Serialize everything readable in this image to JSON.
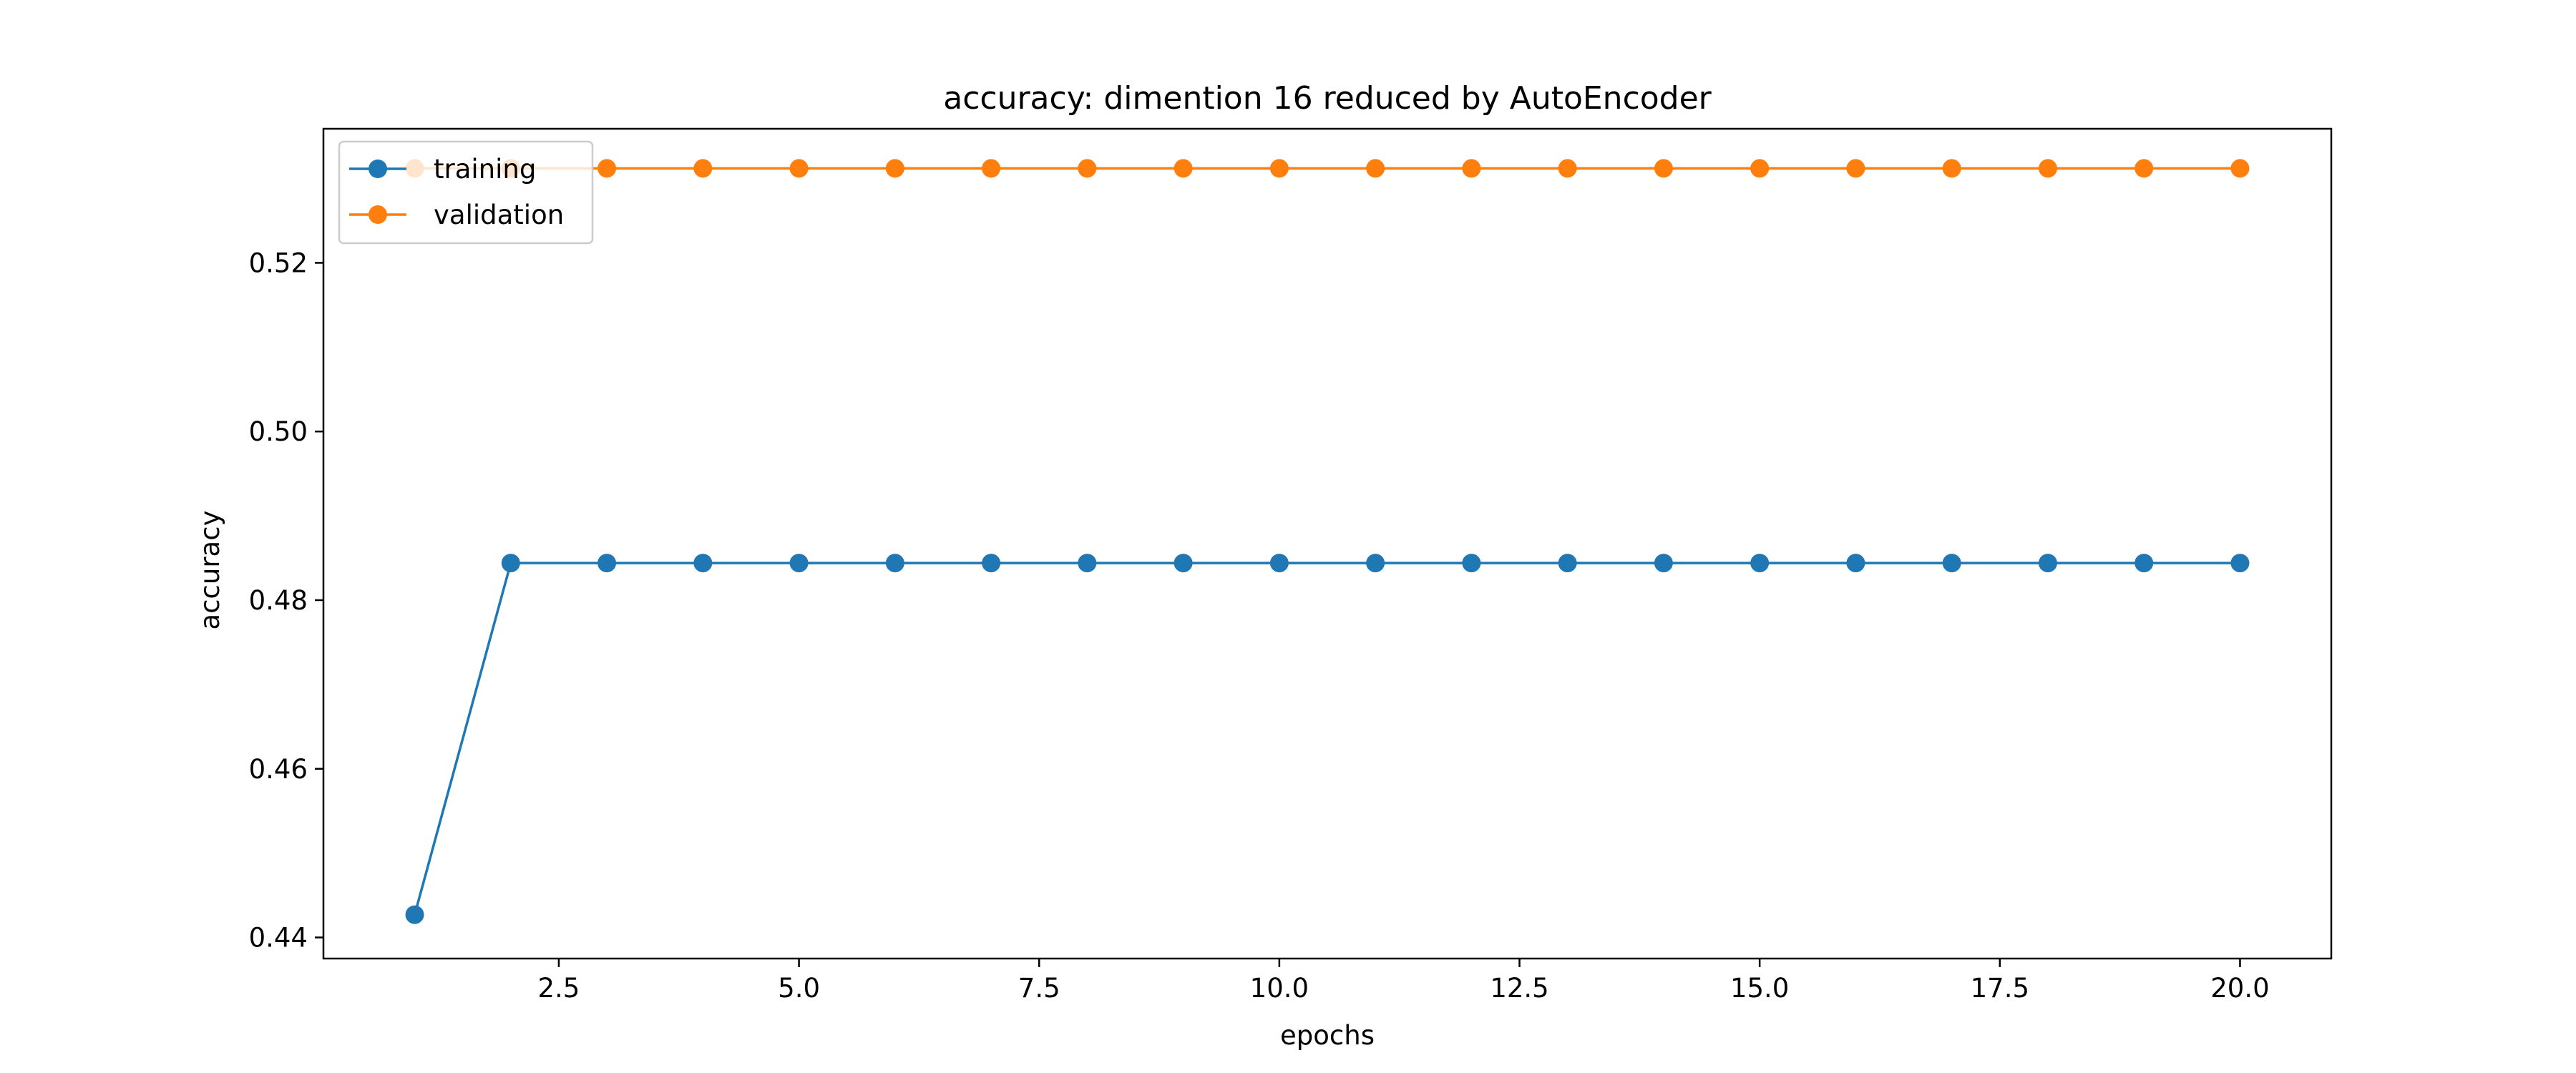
{
  "chart_data": {
    "type": "line",
    "title": "accuracy: dimention 16 reduced by AutoEncoder",
    "xlabel": "epochs",
    "ylabel": "accuracy",
    "xlim": [
      0.05,
      20.95
    ],
    "ylim": [
      0.4375,
      0.5359
    ],
    "xticks": [
      2.5,
      5.0,
      7.5,
      10.0,
      12.5,
      15.0,
      17.5,
      20.0
    ],
    "xtick_labels": [
      "2.5",
      "5.0",
      "7.5",
      "10.0",
      "12.5",
      "15.0",
      "17.5",
      "20.0"
    ],
    "yticks": [
      0.44,
      0.46,
      0.48,
      0.5,
      0.52
    ],
    "ytick_labels": [
      "0.44",
      "0.46",
      "0.48",
      "0.50",
      "0.52"
    ],
    "grid": false,
    "legend_position": "top-left",
    "x": [
      1,
      2,
      3,
      4,
      5,
      6,
      7,
      8,
      9,
      10,
      11,
      12,
      13,
      14,
      15,
      16,
      17,
      18,
      19,
      20
    ],
    "series": [
      {
        "name": "training",
        "color": "#1f77b4",
        "values": [
          0.4427,
          0.4844,
          0.4844,
          0.4844,
          0.4844,
          0.4844,
          0.4844,
          0.4844,
          0.4844,
          0.4844,
          0.4844,
          0.4844,
          0.4844,
          0.4844,
          0.4844,
          0.4844,
          0.4844,
          0.4844,
          0.4844,
          0.4844
        ]
      },
      {
        "name": "validation",
        "color": "#ff7f0e",
        "values": [
          0.5312,
          0.5312,
          0.5312,
          0.5312,
          0.5312,
          0.5312,
          0.5312,
          0.5312,
          0.5312,
          0.5312,
          0.5312,
          0.5312,
          0.5312,
          0.5312,
          0.5312,
          0.5312,
          0.5312,
          0.5312,
          0.5312,
          0.5312
        ]
      }
    ]
  }
}
